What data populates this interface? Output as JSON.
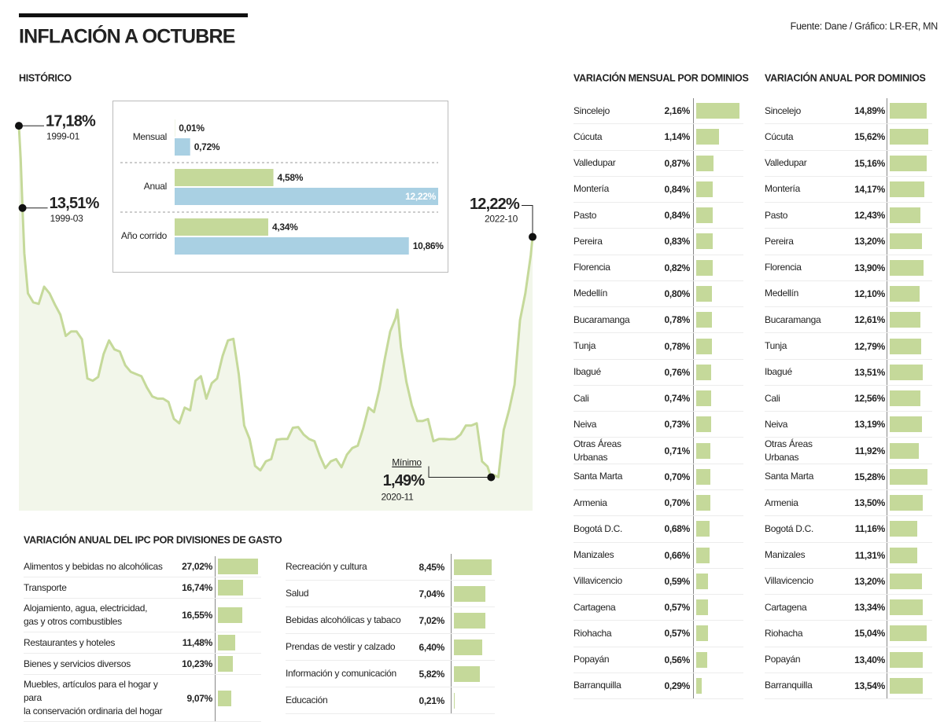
{
  "title": "INFLACIÓN A OCTUBRE",
  "source": "Fuente: Dane / Gráfico: LR-ER, MN",
  "chart_data": [
    {
      "type": "line",
      "title": "HISTÓRICO",
      "color": "#c5d99a",
      "area_color": "#f2f6ea",
      "x": [
        "1999-01",
        "1999-02",
        "1999-03",
        "1999-04",
        "1999-06",
        "1999-09",
        "1999-12",
        "2000-03",
        "2000-06",
        "2000-09",
        "2000-12",
        "2001-03",
        "2001-06",
        "2001-09",
        "2001-12",
        "2002-03",
        "2002-06",
        "2002-09",
        "2002-12",
        "2003-03",
        "2003-06",
        "2003-09",
        "2003-12",
        "2004-03",
        "2004-06",
        "2004-09",
        "2004-12",
        "2005-03",
        "2005-06",
        "2005-09",
        "2005-12",
        "2006-03",
        "2006-06",
        "2006-09",
        "2006-12",
        "2007-03",
        "2007-06",
        "2007-09",
        "2007-12",
        "2008-03",
        "2008-06",
        "2008-09",
        "2008-12",
        "2009-03",
        "2009-06",
        "2009-09",
        "2009-12",
        "2010-03",
        "2010-06",
        "2010-09",
        "2010-12",
        "2011-03",
        "2011-06",
        "2011-09",
        "2011-12",
        "2012-03",
        "2012-06",
        "2012-09",
        "2012-12",
        "2013-03",
        "2013-06",
        "2013-09",
        "2013-12",
        "2014-03",
        "2014-06",
        "2014-09",
        "2014-12",
        "2015-03",
        "2015-06",
        "2015-09",
        "2015-12",
        "2016-03",
        "2016-06",
        "2016-07",
        "2016-09",
        "2016-12",
        "2017-03",
        "2017-06",
        "2017-09",
        "2017-12",
        "2018-03",
        "2018-06",
        "2018-09",
        "2018-12",
        "2019-03",
        "2019-06",
        "2019-09",
        "2019-12",
        "2020-03",
        "2020-06",
        "2020-09",
        "2020-11",
        "2020-12",
        "2021-03",
        "2021-06",
        "2021-09",
        "2021-12",
        "2022-03",
        "2022-06",
        "2022-09",
        "2022-10"
      ],
      "values": [
        17.18,
        15.7,
        13.51,
        11.5,
        9.7,
        9.3,
        9.23,
        10.0,
        9.7,
        9.2,
        8.75,
        7.8,
        8.0,
        8.0,
        7.65,
        5.9,
        5.8,
        5.97,
        6.99,
        7.6,
        7.2,
        7.1,
        6.49,
        6.2,
        6.1,
        6.0,
        5.5,
        5.1,
        5.0,
        5.0,
        4.85,
        4.1,
        3.9,
        4.6,
        4.48,
        5.8,
        6.0,
        5.0,
        5.69,
        5.9,
        6.9,
        7.6,
        7.67,
        6.1,
        3.8,
        3.2,
        2.0,
        1.8,
        2.2,
        2.3,
        3.17,
        3.2,
        3.2,
        3.7,
        3.73,
        3.4,
        3.2,
        3.1,
        2.44,
        1.9,
        2.2,
        2.3,
        1.94,
        2.5,
        2.8,
        2.9,
        3.66,
        4.6,
        4.4,
        5.4,
        6.77,
        8.0,
        8.6,
        8.97,
        7.3,
        5.75,
        4.7,
        4.0,
        4.0,
        4.09,
        3.1,
        3.2,
        3.2,
        3.18,
        3.2,
        3.4,
        3.8,
        3.8,
        3.9,
        2.2,
        1.97,
        1.49,
        1.61,
        1.5,
        3.6,
        4.5,
        5.62,
        8.5,
        9.7,
        11.4,
        12.22
      ],
      "ylim": [
        0,
        17.5
      ],
      "annotations": [
        {
          "label": "17,18%",
          "date": "1999-01"
        },
        {
          "label": "13,51%",
          "date": "1999-03"
        },
        {
          "label": "1,49%",
          "date": "2020-11",
          "note": "Mínimo"
        },
        {
          "label": "12,22%",
          "date": "2022-10"
        }
      ]
    },
    {
      "type": "bar",
      "orientation": "horizontal",
      "categories": [
        "Mensual",
        "Anual",
        "Año corrido"
      ],
      "series": [
        {
          "color": "#c5d99a",
          "values": [
            0.01,
            4.58,
            4.34
          ],
          "value_labels": [
            "0,01%",
            "4,58%",
            "4,34%"
          ]
        },
        {
          "color": "#a9d0e3",
          "values": [
            0.72,
            12.22,
            10.86
          ],
          "value_labels": [
            "0,72%",
            "12,22%",
            "10,86%"
          ]
        }
      ],
      "xlim": [
        0,
        12.22
      ]
    },
    {
      "type": "bar",
      "orientation": "horizontal",
      "title": "VARIACIÓN MENSUAL POR DOMINIOS",
      "color": "#c5d99a",
      "categories": [
        "Sincelejo",
        "Cúcuta",
        "Valledupar",
        "Montería",
        "Pasto",
        "Pereira",
        "Florencia",
        "Medellín",
        "Bucaramanga",
        "Tunja",
        "Ibagué",
        "Cali",
        "Neiva",
        "Otras Áreas Urbanas",
        "Santa Marta",
        "Armenia",
        "Bogotá D.C.",
        "Manizales",
        "Villavicencio",
        "Cartagena",
        "Riohacha",
        "Popayán",
        "Barranquilla"
      ],
      "values": [
        2.16,
        1.14,
        0.87,
        0.84,
        0.84,
        0.83,
        0.82,
        0.8,
        0.78,
        0.78,
        0.76,
        0.74,
        0.73,
        0.71,
        0.7,
        0.7,
        0.68,
        0.66,
        0.59,
        0.57,
        0.57,
        0.56,
        0.29
      ],
      "value_labels": [
        "2,16%",
        "1,14%",
        "0,87%",
        "0,84%",
        "0,84%",
        "0,83%",
        "0,82%",
        "0,80%",
        "0,78%",
        "0,78%",
        "0,76%",
        "0,74%",
        "0,73%",
        "0,71%",
        "0,70%",
        "0,70%",
        "0,68%",
        "0,66%",
        "0,59%",
        "0,57%",
        "0,57%",
        "0,56%",
        "0,29%"
      ],
      "xlim": [
        0,
        2.2
      ]
    },
    {
      "type": "bar",
      "orientation": "horizontal",
      "title": "VARIACIÓN ANUAL POR DOMINIOS",
      "color": "#c5d99a",
      "categories": [
        "Sincelejo",
        "Cúcuta",
        "Valledupar",
        "Montería",
        "Pasto",
        "Pereira",
        "Florencia",
        "Medellín",
        "Bucaramanga",
        "Tunja",
        "Ibagué",
        "Cali",
        "Neiva",
        "Otras Áreas Urbanas",
        "Santa Marta",
        "Armenia",
        "Bogotá D.C.",
        "Manizales",
        "Villavicencio",
        "Cartagena",
        "Riohacha",
        "Popayán",
        "Barranquilla"
      ],
      "values": [
        14.89,
        15.62,
        15.16,
        14.17,
        12.43,
        13.2,
        13.9,
        12.1,
        12.61,
        12.79,
        13.51,
        12.56,
        13.19,
        11.92,
        15.28,
        13.5,
        11.16,
        11.31,
        13.2,
        13.34,
        15.04,
        13.4,
        13.54
      ],
      "value_labels": [
        "14,89%",
        "15,62%",
        "15,16%",
        "14,17%",
        "12,43%",
        "13,20%",
        "13,90%",
        "12,10%",
        "12,61%",
        "12,79%",
        "13,51%",
        "12,56%",
        "13,19%",
        "11,92%",
        "15,28%",
        "13,50%",
        "11,16%",
        "11,31%",
        "13,20%",
        "13,34%",
        "15,04%",
        "13,40%",
        "13,54%"
      ],
      "xlim": [
        0,
        16
      ]
    },
    {
      "type": "bar",
      "orientation": "horizontal",
      "title": "VARIACIÓN ANUAL DEL IPC POR DIVISIONES DE GASTO",
      "color": "#c5d99a",
      "categories": [
        "Alimentos y bebidas no alcohólicas",
        "Transporte",
        "Alojamiento, agua, electricidad,\ngas y otros combustibles",
        "Restaurantes y hoteles",
        "Bienes y servicios diversos",
        "Muebles, artículos para el hogar y para\nla conservación ordinaria del hogar"
      ],
      "values": [
        27.02,
        16.74,
        16.55,
        11.48,
        10.23,
        9.07
      ],
      "value_labels": [
        "27,02%",
        "16,74%",
        "16,55%",
        "11,48%",
        "10,23%",
        "9,07%"
      ],
      "xlim": [
        0,
        27.02
      ]
    },
    {
      "type": "bar",
      "orientation": "horizontal",
      "color": "#c5d99a",
      "categories": [
        "Recreación y cultura",
        "Salud",
        "Bebidas alcohólicas y tabaco",
        "Prendas de vestir y calzado",
        "Información y comunicación",
        "Educación"
      ],
      "values": [
        8.45,
        7.04,
        7.02,
        6.4,
        5.82,
        0.21
      ],
      "value_labels": [
        "8,45%",
        "7,04%",
        "7,02%",
        "6,40%",
        "5,82%",
        "0,21%"
      ],
      "xlim": [
        0,
        8.45
      ]
    }
  ]
}
